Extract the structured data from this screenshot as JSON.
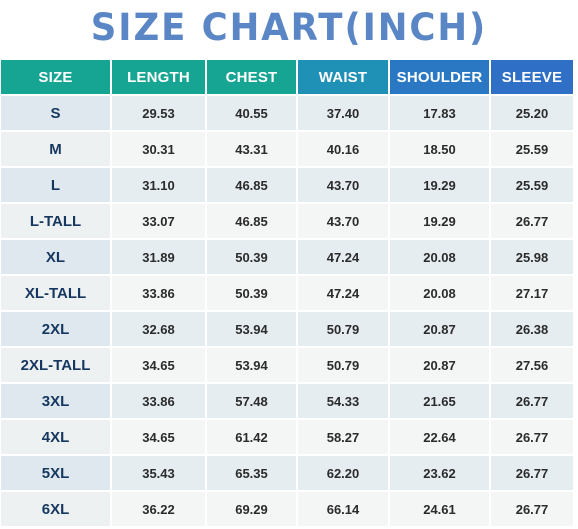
{
  "title": "SIZE CHART(INCH)",
  "columns": [
    "SIZE",
    "LENGTH",
    "CHEST",
    "WAIST",
    "SHOULDER",
    "SLEEVE"
  ],
  "rows": [
    [
      "S",
      "29.53",
      "40.55",
      "37.40",
      "17.83",
      "25.20"
    ],
    [
      "M",
      "30.31",
      "43.31",
      "40.16",
      "18.50",
      "25.59"
    ],
    [
      "L",
      "31.10",
      "46.85",
      "43.70",
      "19.29",
      "25.59"
    ],
    [
      "L-TALL",
      "33.07",
      "46.85",
      "43.70",
      "19.29",
      "26.77"
    ],
    [
      "XL",
      "31.89",
      "50.39",
      "47.24",
      "20.08",
      "25.98"
    ],
    [
      "XL-TALL",
      "33.86",
      "50.39",
      "47.24",
      "20.08",
      "27.17"
    ],
    [
      "2XL",
      "32.68",
      "53.94",
      "50.79",
      "20.87",
      "26.38"
    ],
    [
      "2XL-TALL",
      "34.65",
      "53.94",
      "50.79",
      "20.87",
      "27.56"
    ],
    [
      "3XL",
      "33.86",
      "57.48",
      "54.33",
      "21.65",
      "26.77"
    ],
    [
      "4XL",
      "34.65",
      "61.42",
      "58.27",
      "22.64",
      "26.77"
    ],
    [
      "5XL",
      "35.43",
      "65.35",
      "62.20",
      "23.62",
      "26.77"
    ],
    [
      "6XL",
      "36.22",
      "69.29",
      "66.14",
      "24.61",
      "26.77"
    ]
  ],
  "colors": {
    "title": "#5b86c5",
    "header_teal": "#16a593",
    "header_blue": "#2f6fc6",
    "row_odd": "#e5edf1",
    "row_even": "#f4f5f5"
  }
}
